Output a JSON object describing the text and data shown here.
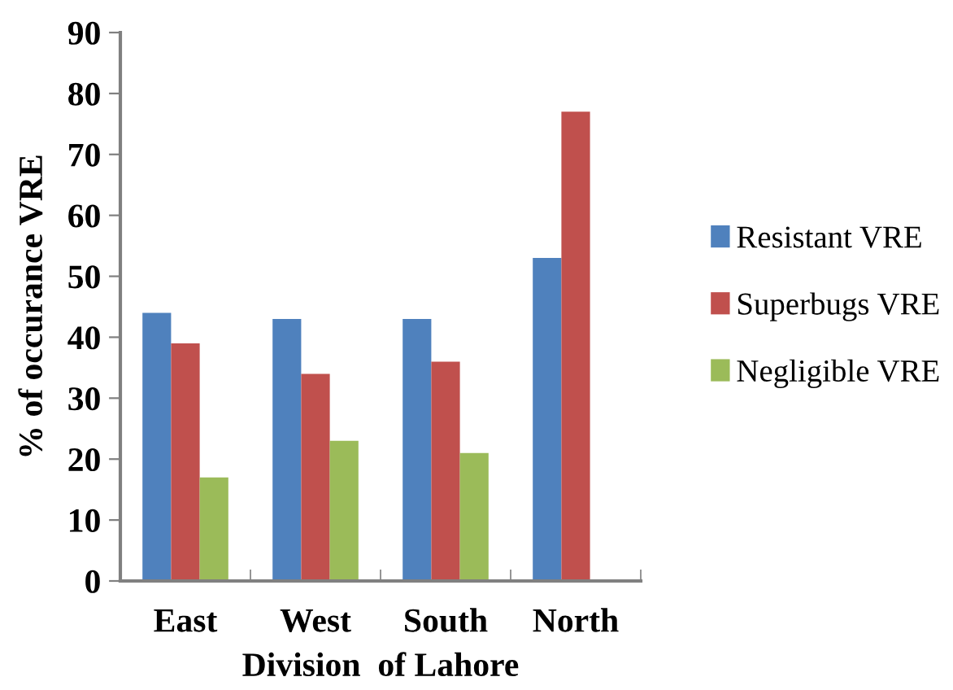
{
  "chart_data": {
    "type": "bar",
    "xlabel": "Division  of Lahore",
    "ylabel": "% of occurance VRE",
    "categories": [
      "East",
      "West",
      "South",
      "North"
    ],
    "series": [
      {
        "name": "Resistant VRE",
        "color": "#4f81bd",
        "values": [
          44,
          43,
          43,
          53
        ]
      },
      {
        "name": "Superbugs VRE",
        "color": "#c0504d",
        "values": [
          39,
          34,
          36,
          77
        ]
      },
      {
        "name": "Negligible VRE",
        "color": "#9bbb59",
        "values": [
          17,
          23,
          21,
          0
        ]
      }
    ],
    "ylim": [
      0,
      90
    ],
    "yticks": [
      0,
      10,
      20,
      30,
      40,
      50,
      60,
      70,
      80,
      90
    ],
    "grid": false,
    "legend": "right"
  }
}
